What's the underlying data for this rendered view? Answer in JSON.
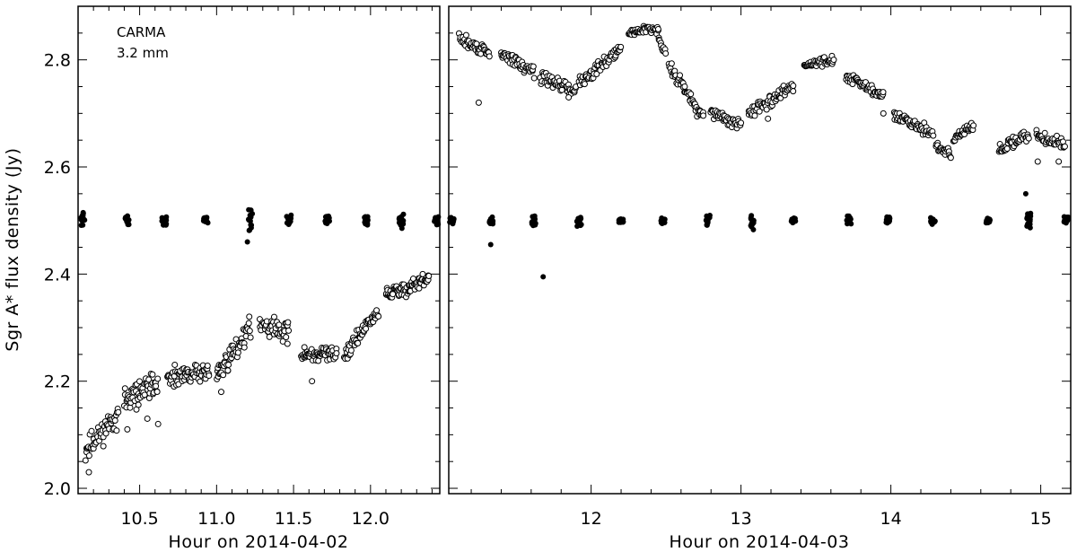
{
  "chart_data": [
    {
      "type": "scatter",
      "panel": "left",
      "xlabel": "Hour on 2014-04-02",
      "ylabel": "Sgr A* flux density (Jy)",
      "xlim": [
        10.1,
        12.45
      ],
      "ylim": [
        1.99,
        2.9
      ],
      "x_ticks": [
        10.5,
        11.0,
        11.5,
        12.0
      ],
      "x_tick_labels": [
        "10.5",
        "11.0",
        "11.5",
        "12.0"
      ],
      "y_ticks": [
        2.0,
        2.2,
        2.4,
        2.6,
        2.8
      ],
      "y_tick_labels": [
        "2.0",
        "2.2",
        "2.4",
        "2.6",
        "2.8"
      ],
      "annotations": [
        "CARMA",
        "3.2 mm"
      ],
      "grid": false,
      "series": [
        {
          "marker": "open-circle",
          "color": "#000000",
          "segments": [
            {
              "x": [
                10.15,
                10.36
              ],
              "y": [
                2.07,
                2.14
              ],
              "spread": 0.03
            },
            {
              "x": [
                10.4,
                10.62
              ],
              "y": [
                2.16,
                2.2
              ],
              "spread": 0.03
            },
            {
              "x": [
                10.68,
                10.95
              ],
              "y": [
                2.2,
                2.22
              ],
              "spread": 0.025
            },
            {
              "x": [
                11.0,
                11.22
              ],
              "y": [
                2.21,
                2.3
              ],
              "spread": 0.025
            },
            {
              "x": [
                11.28,
                11.47
              ],
              "y": [
                2.31,
                2.29
              ],
              "spread": 0.025
            },
            {
              "x": [
                11.55,
                11.78
              ],
              "y": [
                2.25,
                2.25
              ],
              "spread": 0.02
            },
            {
              "x": [
                11.83,
                12.05
              ],
              "y": [
                2.25,
                2.33
              ],
              "spread": 0.02
            },
            {
              "x": [
                12.1,
                12.38
              ],
              "y": [
                2.36,
                2.39
              ],
              "spread": 0.02
            }
          ],
          "outliers": [
            {
              "x": 10.17,
              "y": 2.03
            },
            {
              "x": 10.42,
              "y": 2.11
            },
            {
              "x": 10.55,
              "y": 2.13
            },
            {
              "x": 10.62,
              "y": 2.12
            },
            {
              "x": 11.03,
              "y": 2.18
            },
            {
              "x": 11.62,
              "y": 2.2
            }
          ]
        },
        {
          "marker": "filled-circle",
          "color": "#000000",
          "level": 2.5,
          "cluster_x": [
            10.13,
            10.42,
            10.66,
            10.93,
            11.22,
            11.47,
            11.72,
            11.97,
            12.2,
            12.43
          ],
          "cluster_spread": [
            0.015,
            0.01,
            0.012,
            0.008,
            0.035,
            0.012,
            0.01,
            0.01,
            0.015,
            0.012
          ],
          "outliers": [
            {
              "x": 11.2,
              "y": 2.46
            }
          ]
        }
      ]
    },
    {
      "type": "scatter",
      "panel": "right",
      "xlabel": "Hour on 2014-04-03",
      "ylabel": "",
      "xlim": [
        11.05,
        15.2
      ],
      "ylim": [
        1.99,
        2.9
      ],
      "x_ticks": [
        12,
        13,
        14,
        15
      ],
      "x_tick_labels": [
        "12",
        "13",
        "14",
        "15"
      ],
      "y_ticks": [
        2.0,
        2.2,
        2.4,
        2.6,
        2.8
      ],
      "grid": false,
      "series": [
        {
          "marker": "open-circle",
          "color": "#000000",
          "segments": [
            {
              "x": [
                11.12,
                11.32
              ],
              "y": [
                2.84,
                2.81
              ],
              "spread": 0.015
            },
            {
              "x": [
                11.4,
                11.62
              ],
              "y": [
                2.81,
                2.78
              ],
              "spread": 0.015
            },
            {
              "x": [
                11.66,
                11.9
              ],
              "y": [
                2.77,
                2.74
              ],
              "spread": 0.015
            },
            {
              "x": [
                11.92,
                12.2
              ],
              "y": [
                2.76,
                2.82
              ],
              "spread": 0.015
            },
            {
              "x": [
                12.25,
                12.45
              ],
              "y": [
                2.85,
                2.86
              ],
              "spread": 0.01
            },
            {
              "x": [
                12.45,
                12.5
              ],
              "y": [
                2.84,
                2.81
              ],
              "spread": 0.01
            },
            {
              "x": [
                12.52,
                12.75
              ],
              "y": [
                2.79,
                2.69
              ],
              "spread": 0.015
            },
            {
              "x": [
                12.8,
                13.0
              ],
              "y": [
                2.7,
                2.68
              ],
              "spread": 0.015
            },
            {
              "x": [
                13.05,
                13.35
              ],
              "y": [
                2.7,
                2.75
              ],
              "spread": 0.015
            },
            {
              "x": [
                13.42,
                13.62
              ],
              "y": [
                2.79,
                2.8
              ],
              "spread": 0.01
            },
            {
              "x": [
                13.7,
                13.95
              ],
              "y": [
                2.77,
                2.73
              ],
              "spread": 0.015
            },
            {
              "x": [
                14.02,
                14.28
              ],
              "y": [
                2.7,
                2.66
              ],
              "spread": 0.015
            },
            {
              "x": [
                14.3,
                14.4
              ],
              "y": [
                2.64,
                2.62
              ],
              "spread": 0.015
            },
            {
              "x": [
                14.42,
                14.55
              ],
              "y": [
                2.65,
                2.68
              ],
              "spread": 0.01
            },
            {
              "x": [
                14.72,
                14.92
              ],
              "y": [
                2.63,
                2.66
              ],
              "spread": 0.015
            },
            {
              "x": [
                14.97,
                15.16
              ],
              "y": [
                2.66,
                2.64
              ],
              "spread": 0.015
            }
          ],
          "outliers": [
            {
              "x": 11.25,
              "y": 2.72
            },
            {
              "x": 11.85,
              "y": 2.73
            },
            {
              "x": 13.18,
              "y": 2.69
            },
            {
              "x": 13.95,
              "y": 2.7
            },
            {
              "x": 14.98,
              "y": 2.61
            },
            {
              "x": 15.12,
              "y": 2.61
            }
          ]
        },
        {
          "marker": "filled-circle",
          "color": "#000000",
          "level": 2.5,
          "cluster_x": [
            11.07,
            11.33,
            11.62,
            11.92,
            12.2,
            12.48,
            12.78,
            13.08,
            13.35,
            13.72,
            13.98,
            14.28,
            14.65,
            14.92,
            15.17
          ],
          "cluster_spread": [
            0.01,
            0.01,
            0.015,
            0.012,
            0.005,
            0.006,
            0.01,
            0.02,
            0.006,
            0.01,
            0.01,
            0.01,
            0.008,
            0.02,
            0.01
          ],
          "outliers": [
            {
              "x": 11.33,
              "y": 2.455
            },
            {
              "x": 11.68,
              "y": 2.395
            },
            {
              "x": 14.9,
              "y": 2.55
            }
          ]
        }
      ]
    }
  ]
}
